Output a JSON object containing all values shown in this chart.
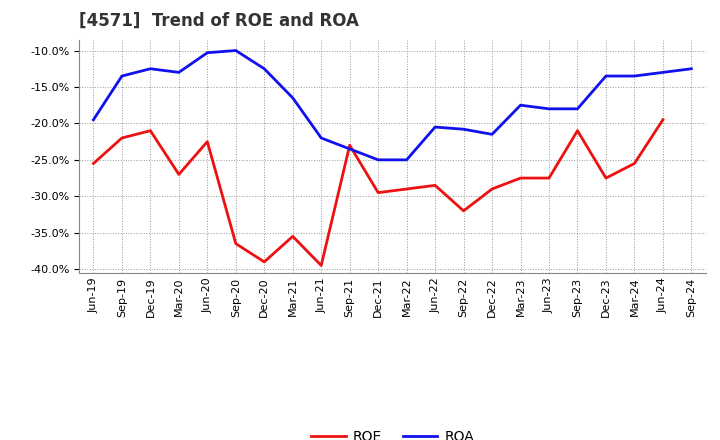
{
  "title": "[4571]  Trend of ROE and ROA",
  "labels": [
    "Jun-19",
    "Sep-19",
    "Dec-19",
    "Mar-20",
    "Jun-20",
    "Sep-20",
    "Dec-20",
    "Mar-21",
    "Jun-21",
    "Sep-21",
    "Dec-21",
    "Mar-22",
    "Jun-22",
    "Sep-22",
    "Dec-22",
    "Mar-23",
    "Jun-23",
    "Sep-23",
    "Dec-23",
    "Mar-24",
    "Jun-24",
    "Sep-24"
  ],
  "ROE": [
    -25.5,
    -22.0,
    -21.0,
    -27.0,
    -22.5,
    -36.5,
    -39.0,
    -35.5,
    -39.5,
    -23.0,
    -29.5,
    -29.0,
    -28.5,
    -32.0,
    -29.0,
    -27.5,
    -27.5,
    -21.0,
    -27.5,
    -25.5,
    -19.5,
    null
  ],
  "ROA": [
    -19.5,
    -13.5,
    -12.5,
    -13.0,
    -10.3,
    -10.0,
    -12.5,
    -16.5,
    -22.0,
    -23.5,
    -25.0,
    -25.0,
    -20.5,
    -20.8,
    -21.5,
    -17.5,
    -18.0,
    -18.0,
    -13.5,
    -13.5,
    -13.0,
    -12.5
  ],
  "ylim": [
    -40.5,
    -8.5
  ],
  "yticks": [
    -40.0,
    -35.0,
    -30.0,
    -25.0,
    -20.0,
    -15.0,
    -10.0
  ],
  "roe_color": "#ee1111",
  "roa_color": "#1111ee",
  "background_color": "#ffffff",
  "plot_bg_color": "#ffffff",
  "grid_color": "#999999",
  "linewidth": 2.0,
  "title_fontsize": 12,
  "tick_fontsize": 8,
  "legend_fontsize": 10
}
